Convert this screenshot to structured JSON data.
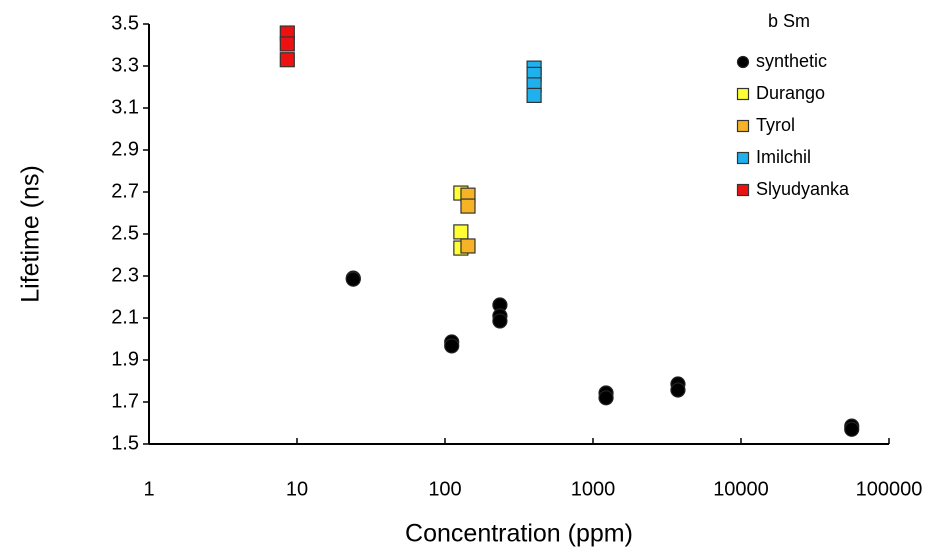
{
  "chart_data": {
    "type": "scatter",
    "x_label": "Concentration (ppm)",
    "y_label": "Lifetime (ns)",
    "legend_title": "b Sm",
    "legend_position": "upper right",
    "x_scale": "log",
    "xlim": [
      1,
      100000
    ],
    "xticks": [
      1,
      10,
      100,
      1000,
      10000,
      100000
    ],
    "ylim": [
      1.5,
      3.5
    ],
    "yticks": [
      1.5,
      1.7,
      1.9,
      2.1,
      2.3,
      2.5,
      2.7,
      2.9,
      3.1,
      3.3,
      3.5
    ],
    "series": [
      {
        "name": "synthetic",
        "color": "#000000",
        "marker": "circle",
        "x": [
          24,
          24,
          111,
          111,
          235,
          235,
          235,
          1225,
          1225,
          3750,
          3750,
          56000,
          56000
        ],
        "values": [
          2.29,
          2.285,
          1.986,
          1.967,
          2.162,
          2.11,
          2.086,
          1.743,
          1.72,
          1.786,
          1.757,
          1.585,
          1.57
        ]
      },
      {
        "name": "Durango",
        "color": "#ffff33",
        "marker": "square",
        "x": [
          128,
          128,
          128
        ],
        "values": [
          2.695,
          2.51,
          2.433
        ]
      },
      {
        "name": "Tyrol",
        "color": "#f5b325",
        "marker": "square",
        "x": [
          143,
          143,
          143
        ],
        "values": [
          2.685,
          2.633,
          2.443
        ]
      },
      {
        "name": "Imilchil",
        "color": "#1fb0ee",
        "marker": "square",
        "x": [
          400,
          400,
          400,
          400
        ],
        "values": [
          3.29,
          3.26,
          3.21,
          3.16
        ]
      },
      {
        "name": "Slyudyanka",
        "color": "#ee1111",
        "marker": "square",
        "x": [
          8.6,
          8.6,
          8.6
        ],
        "values": [
          3.457,
          3.405,
          3.33
        ]
      }
    ]
  }
}
